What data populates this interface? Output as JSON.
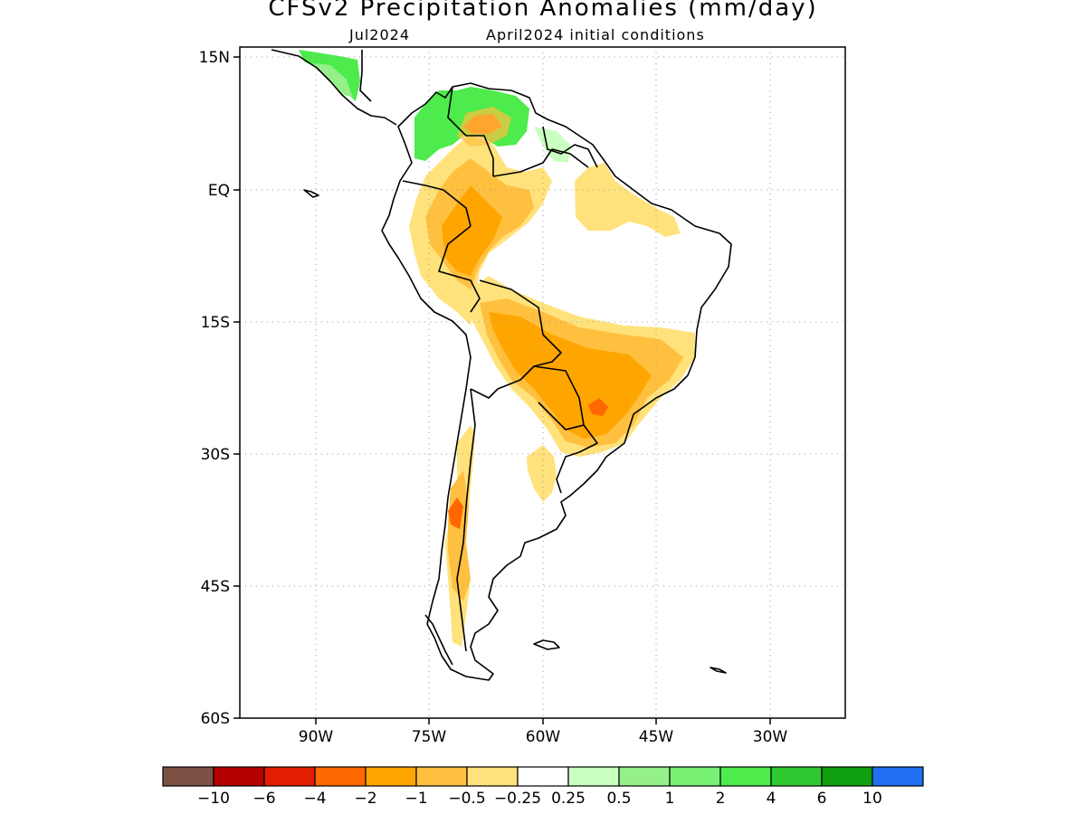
{
  "title": "CFSv2 Precipitation Anomalies (mm/day)",
  "subtitle_left": "Jul2024",
  "subtitle_right": "April2024 initial conditions",
  "lat_labels": [
    "15N",
    "EQ",
    "15S",
    "30S",
    "45S",
    "60S"
  ],
  "lon_labels": [
    "90W",
    "75W",
    "60W",
    "45W",
    "30W"
  ],
  "colorbar": {
    "colors": [
      "#7b5143",
      "#b50000",
      "#e11e00",
      "#ff6700",
      "#ffa500",
      "#ffc040",
      "#ffe27b",
      "#ffffff",
      "#c9ffc0",
      "#95f08a",
      "#78f074",
      "#4deb4b",
      "#2fc830",
      "#0f9f0f",
      "#1f6ff0"
    ],
    "tick_labels": [
      "−10",
      "−6",
      "−4",
      "−2",
      "−1",
      "−0.5",
      "−0.25",
      "0.25",
      "0.5",
      "1",
      "2",
      "4",
      "6",
      "10"
    ]
  },
  "map": {
    "region": "South America",
    "lon_range": [
      "100W",
      "20W"
    ],
    "lat_range": [
      "60S",
      "15N"
    ],
    "grid": "dotted"
  }
}
